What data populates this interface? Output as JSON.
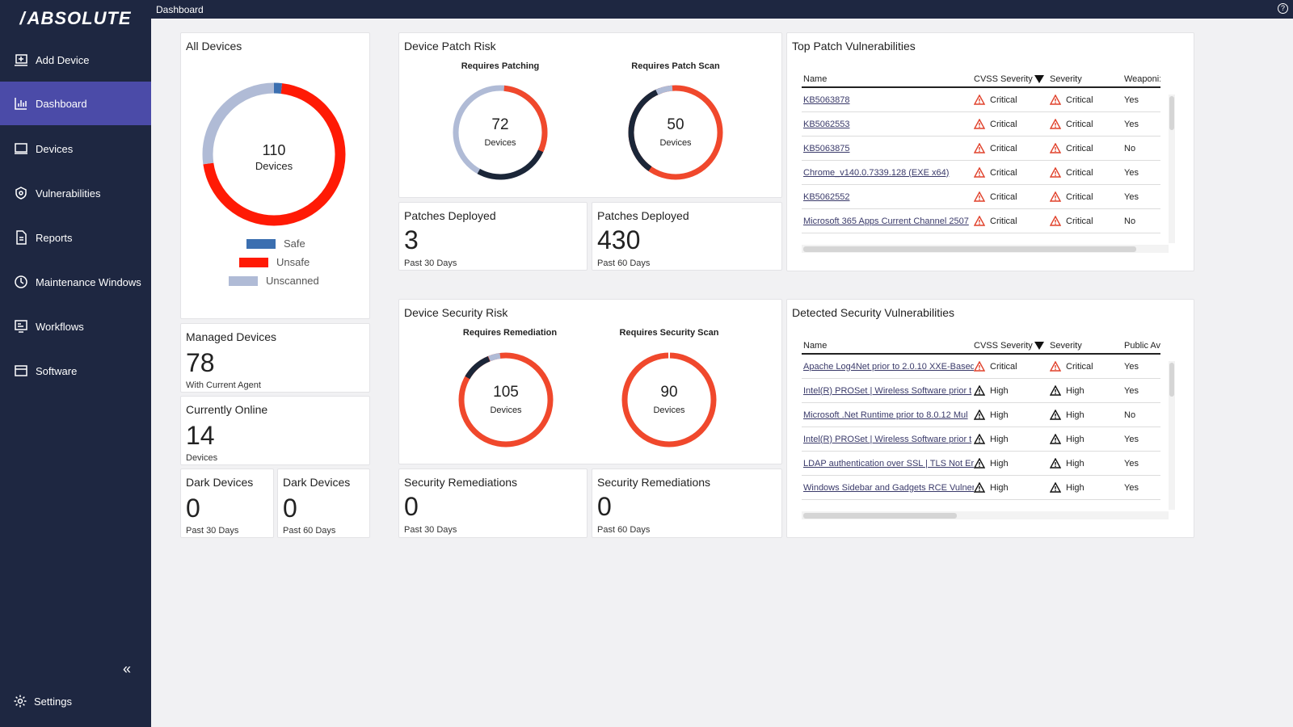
{
  "app": {
    "logo": "ABSOLUTE",
    "page_title": "Dashboard",
    "help_icon": "?"
  },
  "sidebar": {
    "items": [
      {
        "label": "Add Device",
        "icon": "add-device-icon"
      },
      {
        "label": "Dashboard",
        "icon": "dashboard-icon",
        "active": true
      },
      {
        "label": "Devices",
        "icon": "laptop-icon"
      },
      {
        "label": "Vulnerabilities",
        "icon": "vulnerability-icon"
      },
      {
        "label": "Reports",
        "icon": "report-icon"
      },
      {
        "label": "Maintenance Windows",
        "icon": "clock-icon"
      },
      {
        "label": "Workflows",
        "icon": "workflow-icon"
      },
      {
        "label": "Software",
        "icon": "software-icon"
      }
    ],
    "collapse": "«",
    "settings": "Settings"
  },
  "all_devices": {
    "title": "All Devices",
    "total": "110",
    "unit": "Devices",
    "segments": {
      "safe": 2,
      "unsafe": 78,
      "unscanned": 30
    },
    "legend": [
      "Safe",
      "Unsafe",
      "Unscanned"
    ],
    "colors": {
      "safe": "#3b6fb0",
      "unsafe": "#ff1a05",
      "unscanned": "#b0bbd6"
    }
  },
  "managed": {
    "title": "Managed Devices",
    "value": "78",
    "sub": "With Current Agent"
  },
  "online": {
    "title": "Currently Online",
    "value": "14",
    "sub": "Devices"
  },
  "dark30": {
    "title": "Dark Devices",
    "value": "0",
    "sub": "Past 30 Days"
  },
  "dark60": {
    "title": "Dark Devices",
    "value": "0",
    "sub": "Past 60 Days"
  },
  "patch_risk": {
    "title": "Device Patch Risk",
    "g1": {
      "title": "Requires Patching",
      "value": "72",
      "unit": "Devices"
    },
    "g2": {
      "title": "Requires Patch Scan",
      "value": "50",
      "unit": "Devices"
    }
  },
  "patches30": {
    "title": "Patches Deployed",
    "value": "3",
    "sub": "Past 30 Days"
  },
  "patches60": {
    "title": "Patches Deployed",
    "value": "430",
    "sub": "Past 60 Days"
  },
  "security_risk": {
    "title": "Device Security Risk",
    "g1": {
      "title": "Requires Remediation",
      "value": "105",
      "unit": "Devices"
    },
    "g2": {
      "title": "Requires Security Scan",
      "value": "90",
      "unit": "Devices"
    }
  },
  "rem30": {
    "title": "Security Remediations",
    "value": "0",
    "sub": "Past 30 Days"
  },
  "rem60": {
    "title": "Security Remediations",
    "value": "0",
    "sub": "Past 60 Days"
  },
  "top_patch": {
    "title": "Top Patch Vulnerabilities",
    "headers": [
      "Name",
      "CVSS Severity",
      "Severity",
      "Weaponi:"
    ],
    "rows": [
      [
        "KB5063878",
        "Critical",
        "Critical",
        "Yes"
      ],
      [
        "KB5062553",
        "Critical",
        "Critical",
        "Yes"
      ],
      [
        "KB5063875",
        "Critical",
        "Critical",
        "No"
      ],
      [
        "Chrome_v140.0.7339.128 (EXE x64)",
        "Critical",
        "Critical",
        "Yes"
      ],
      [
        "KB5062552",
        "Critical",
        "Critical",
        "Yes"
      ],
      [
        "Microsoft 365 Apps Current Channel 2507",
        "Critical",
        "Critical",
        "No"
      ]
    ]
  },
  "detected": {
    "title": "Detected Security Vulnerabilities",
    "headers": [
      "Name",
      "CVSS Severity",
      "Severity",
      "Public Av"
    ],
    "rows": [
      [
        "Apache Log4Net prior to 2.0.10 XXE-Based",
        "Critical",
        "Critical",
        "Yes"
      ],
      [
        "Intel(R) PROSet | Wireless Software prior t",
        "High",
        "High",
        "Yes"
      ],
      [
        "Microsoft .Net Runtime prior to 8.0.12 Mul",
        "High",
        "High",
        "No"
      ],
      [
        "Intel(R) PROSet | Wireless Software prior t",
        "High",
        "High",
        "Yes"
      ],
      [
        "LDAP authentication over SSL | TLS Not Er",
        "High",
        "High",
        "Yes"
      ],
      [
        "Windows Sidebar and Gadgets RCE Vulner",
        "High",
        "High",
        "Yes"
      ]
    ]
  }
}
